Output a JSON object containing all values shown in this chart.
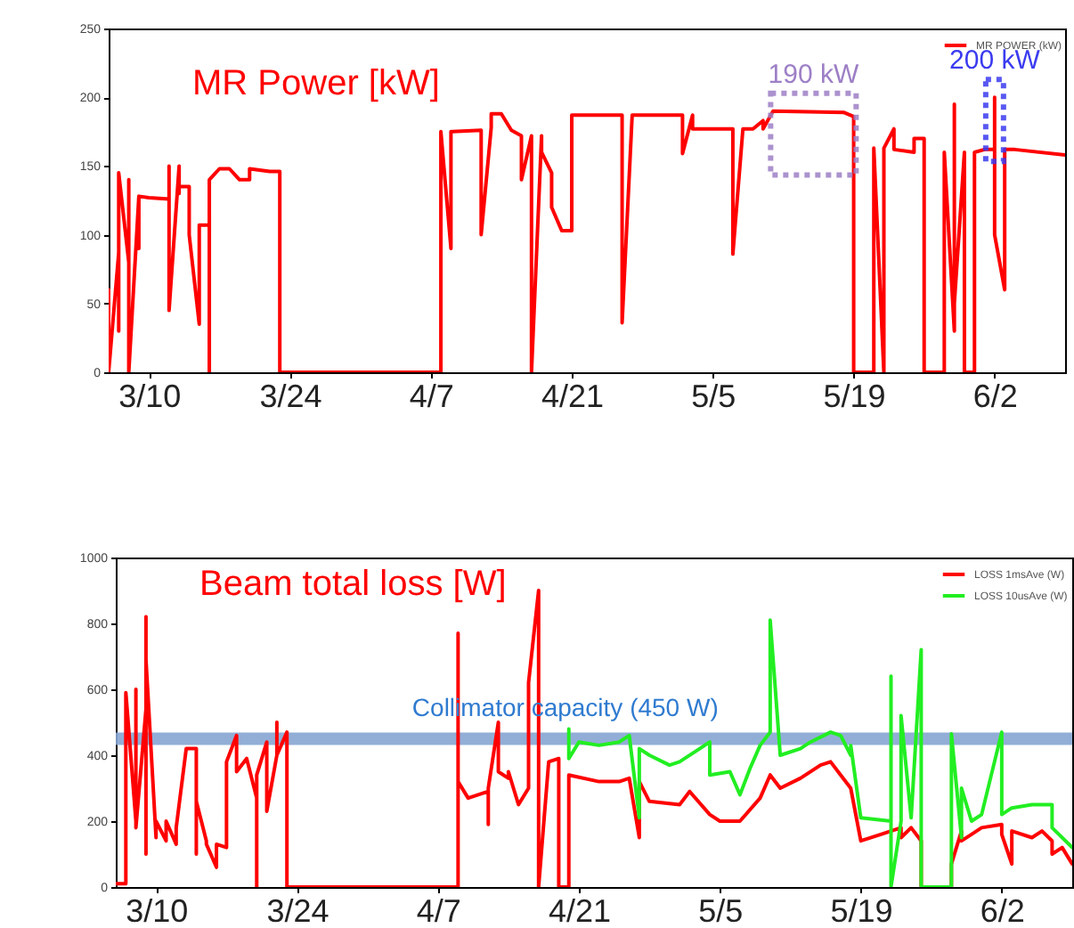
{
  "chart_data": [
    {
      "type": "line",
      "title": "MR Power [kW]",
      "x": [
        "--03-06",
        "--03-06",
        "--03-06",
        "--03-06",
        "--03-07",
        "--03-07",
        "--03-07",
        "--03-07",
        "--03-08",
        "--03-08",
        "--03-08",
        "--03-08",
        "--03-08",
        "--03-09",
        "--03-09",
        "--03-09",
        "--03-10",
        "--03-12",
        "--03-12",
        "--03-12",
        "--03-13",
        "--03-13",
        "--03-13",
        "--03-14",
        "--03-14",
        "--03-15",
        "--03-15",
        "--03-16",
        "--03-16",
        "--03-16",
        "--03-17",
        "--03-18",
        "--03-19",
        "--03-20",
        "--03-20",
        "--03-22",
        "--03-23",
        "--03-23",
        "--04-08",
        "--04-08",
        "--04-09",
        "--04-09",
        "--04-12",
        "--04-12",
        "--04-13",
        "--04-13",
        "--04-14",
        "--04-15",
        "--04-16",
        "--04-16",
        "--04-17",
        "--04-17",
        "--04-18",
        "--04-18",
        "--04-19",
        "--04-19",
        "--04-20",
        "--04-21",
        "--04-21",
        "--04-26",
        "--04-26",
        "--04-27",
        "--05-02",
        "--05-02",
        "--05-03",
        "--05-03",
        "--05-07",
        "--05-07",
        "--05-08",
        "--05-09",
        "--05-10",
        "--05-10",
        "--05-11",
        "--05-18",
        "--05-19",
        "--05-19",
        "--05-19",
        "--05-21",
        "--05-21",
        "--05-22",
        "--05-22",
        "--05-23",
        "--05-23",
        "--05-25",
        "--05-25",
        "--05-26",
        "--05-26",
        "--05-26",
        "--05-28",
        "--05-28",
        "--05-29",
        "--05-29",
        "--05-29",
        "--05-30",
        "--05-30",
        "--05-31",
        "--05-31",
        "--06-01",
        "--06-02",
        "--06-02",
        "--06-02",
        "--06-03",
        "--06-03",
        "--06-04",
        "--06-09"
      ],
      "series": [
        {
          "name": "MR POWER (kW)",
          "color": "#ff0000",
          "values": [
            0,
            0,
            60,
            0,
            87,
            30,
            87,
            145,
            80,
            140,
            0,
            130,
            0,
            128,
            90,
            128,
            127,
            126,
            150,
            45,
            150,
            130,
            135,
            135,
            100,
            35,
            107,
            107,
            0,
            140,
            148,
            148,
            140,
            140,
            148,
            146,
            146,
            0,
            0,
            175,
            90,
            175,
            176,
            100,
            178,
            188,
            188,
            176,
            172,
            140,
            172,
            0,
            172,
            160,
            145,
            120,
            103,
            103,
            187,
            187,
            36,
            187,
            187,
            159,
            187,
            177,
            177,
            86,
            177,
            177,
            183,
            177,
            190,
            189,
            186,
            160,
            0,
            0,
            163,
            0,
            163,
            177,
            162,
            160,
            170,
            170,
            160,
            0,
            0,
            160,
            30,
            195,
            50,
            160,
            0,
            0,
            160,
            162,
            162,
            200,
            100,
            60,
            162,
            162,
            158
          ]
        }
      ],
      "xlim": [
        "--03-06",
        "--06-09"
      ],
      "xticks": [
        {
          "value": "--03-10",
          "label": "3/10"
        },
        {
          "value": "--03-24",
          "label": "3/24"
        },
        {
          "value": "--04-07",
          "label": "4/7"
        },
        {
          "value": "--04-21",
          "label": "4/21"
        },
        {
          "value": "--05-05",
          "label": "5/5"
        },
        {
          "value": "--05-19",
          "label": "5/19"
        },
        {
          "value": "--06-02",
          "label": "6/2"
        }
      ],
      "ylim": [
        0,
        250
      ],
      "yticks": [
        0,
        50,
        100,
        150,
        200,
        250
      ],
      "legend": "top right",
      "annotations": [
        {
          "text": "190 kW",
          "x": "--05-15",
          "y": 190
        },
        {
          "text": "200 kW",
          "x": "--06-02",
          "y": 200
        }
      ]
    },
    {
      "type": "line",
      "title": "Beam total loss [W]",
      "series": [
        {
          "name": "LOSS 1msAve (W)",
          "color": "#ff0000",
          "x": [
            "--03-06",
            "--03-07",
            "--03-07",
            "--03-07",
            "--03-08",
            "--03-08",
            "--03-08",
            "--03-08",
            "--03-08",
            "--03-09",
            "--03-09",
            "--03-09",
            "--03-09",
            "--03-09",
            "--03-10",
            "--03-10",
            "--03-11",
            "--03-11",
            "--03-12",
            "--03-12",
            "--03-13",
            "--03-14",
            "--03-14",
            "--03-14",
            "--03-14",
            "--03-15",
            "--03-15",
            "--03-16",
            "--03-16",
            "--03-17",
            "--03-17",
            "--03-17",
            "--03-18",
            "--03-18",
            "--03-19",
            "--03-20",
            "--03-20",
            "--03-20",
            "--03-20",
            "--03-21",
            "--03-21",
            "--03-22",
            "--03-22",
            "--03-22",
            "--03-23",
            "--03-23",
            "--03-23",
            "--04-09",
            "--04-09",
            "--04-09",
            "--04-09",
            "--04-10",
            "--04-11",
            "--04-12",
            "--04-12",
            "--04-12",
            "--04-13",
            "--04-13",
            "--04-14",
            "--04-14",
            "--04-15",
            "--04-16",
            "--04-16",
            "--04-16",
            "--04-17",
            "--04-17",
            "--04-17",
            "--04-18",
            "--04-19",
            "--04-19",
            "--04-20",
            "--04-20",
            "--04-23",
            "--04-25",
            "--04-26",
            "--04-27",
            "--04-27",
            "--04-28",
            "--05-01",
            "--05-02",
            "--05-04",
            "--05-05",
            "--05-07",
            "--05-09",
            "--05-10",
            "--05-11",
            "--05-13",
            "--05-15",
            "--05-16",
            "--05-17",
            "--05-18",
            "--05-19",
            "--05-21",
            "--05-23",
            "--05-23",
            "--05-24",
            "--05-25",
            "--05-25",
            "--05-28",
            "--05-28",
            "--05-29",
            "--05-29",
            "--05-30",
            "--05-31",
            "--06-02",
            "--06-02",
            "--06-03",
            "--06-03",
            "--06-05",
            "--06-06",
            "--06-07",
            "--06-07",
            "--06-08",
            "--06-09"
          ],
          "values": [
            10,
            10,
            530,
            590,
            200,
            600,
            400,
            200,
            180,
            540,
            150,
            820,
            100,
            690,
            150,
            200,
            140,
            200,
            130,
            180,
            420,
            420,
            100,
            250,
            260,
            140,
            130,
            60,
            130,
            120,
            250,
            380,
            460,
            350,
            390,
            270,
            0,
            250,
            340,
            440,
            230,
            400,
            500,
            400,
            470,
            470,
            0,
            0,
            770,
            180,
            320,
            270,
            280,
            290,
            190,
            300,
            500,
            350,
            330,
            350,
            250,
            300,
            610,
            620,
            900,
            200,
            0,
            380,
            390,
            0,
            0,
            340,
            320,
            320,
            330,
            150,
            320,
            260,
            250,
            290,
            220,
            200,
            200,
            270,
            340,
            300,
            330,
            370,
            380,
            340,
            300,
            140,
            160,
            180,
            150,
            180,
            140,
            0,
            0,
            70,
            170,
            140,
            160,
            180,
            190,
            160,
            70,
            170,
            150,
            170,
            140,
            100,
            120,
            70
          ]
        },
        {
          "name": "LOSS 10usAve (W)",
          "color": "#22ee22",
          "x": [
            "--04-20",
            "--04-20",
            "--04-21",
            "--04-23",
            "--04-25",
            "--04-26",
            "--04-27",
            "--04-27",
            "--04-28",
            "--04-30",
            "--05-01",
            "--05-03",
            "--05-04",
            "--05-04",
            "--05-06",
            "--05-07",
            "--05-08",
            "--05-09",
            "--05-10",
            "--05-10",
            "--05-11",
            "--05-13",
            "--05-14",
            "--05-16",
            "--05-17",
            "--05-18",
            "--05-18",
            "--05-19",
            "--05-22",
            "--05-22",
            "--05-22",
            "--05-23",
            "--05-23",
            "--05-24",
            "--05-25",
            "--05-25",
            "--05-25",
            "--05-28",
            "--05-28",
            "--05-29",
            "--05-29",
            "--05-30",
            "--05-31",
            "--06-02",
            "--06-02",
            "--06-03",
            "--06-05",
            "--06-07",
            "--06-07",
            "--06-09"
          ],
          "values": [
            480,
            390,
            440,
            430,
            440,
            460,
            210,
            420,
            400,
            370,
            380,
            420,
            440,
            340,
            350,
            280,
            360,
            430,
            470,
            810,
            400,
            420,
            440,
            470,
            460,
            400,
            430,
            210,
            200,
            640,
            0,
            200,
            520,
            210,
            720,
            200,
            0,
            0,
            465,
            150,
            300,
            200,
            220,
            470,
            220,
            240,
            250,
            250,
            180,
            120
          ]
        }
      ],
      "xlim": [
        "--03-06",
        "--06-09"
      ],
      "xticks": [
        {
          "value": "--03-10",
          "label": "3/10"
        },
        {
          "value": "--03-24",
          "label": "3/24"
        },
        {
          "value": "--04-07",
          "label": "4/7"
        },
        {
          "value": "--04-21",
          "label": "4/21"
        },
        {
          "value": "--05-05",
          "label": "5/5"
        },
        {
          "value": "--05-19",
          "label": "5/19"
        },
        {
          "value": "--06-02",
          "label": "6/2"
        }
      ],
      "ylim": [
        0,
        1000
      ],
      "yticks": [
        0,
        200,
        400,
        600,
        800,
        1000
      ],
      "legend": "top right",
      "ref_lines": [
        {
          "axis": "y",
          "value": 450,
          "label": "Collimator capacity (450 W)",
          "color": "#86a5d3"
        }
      ]
    }
  ]
}
